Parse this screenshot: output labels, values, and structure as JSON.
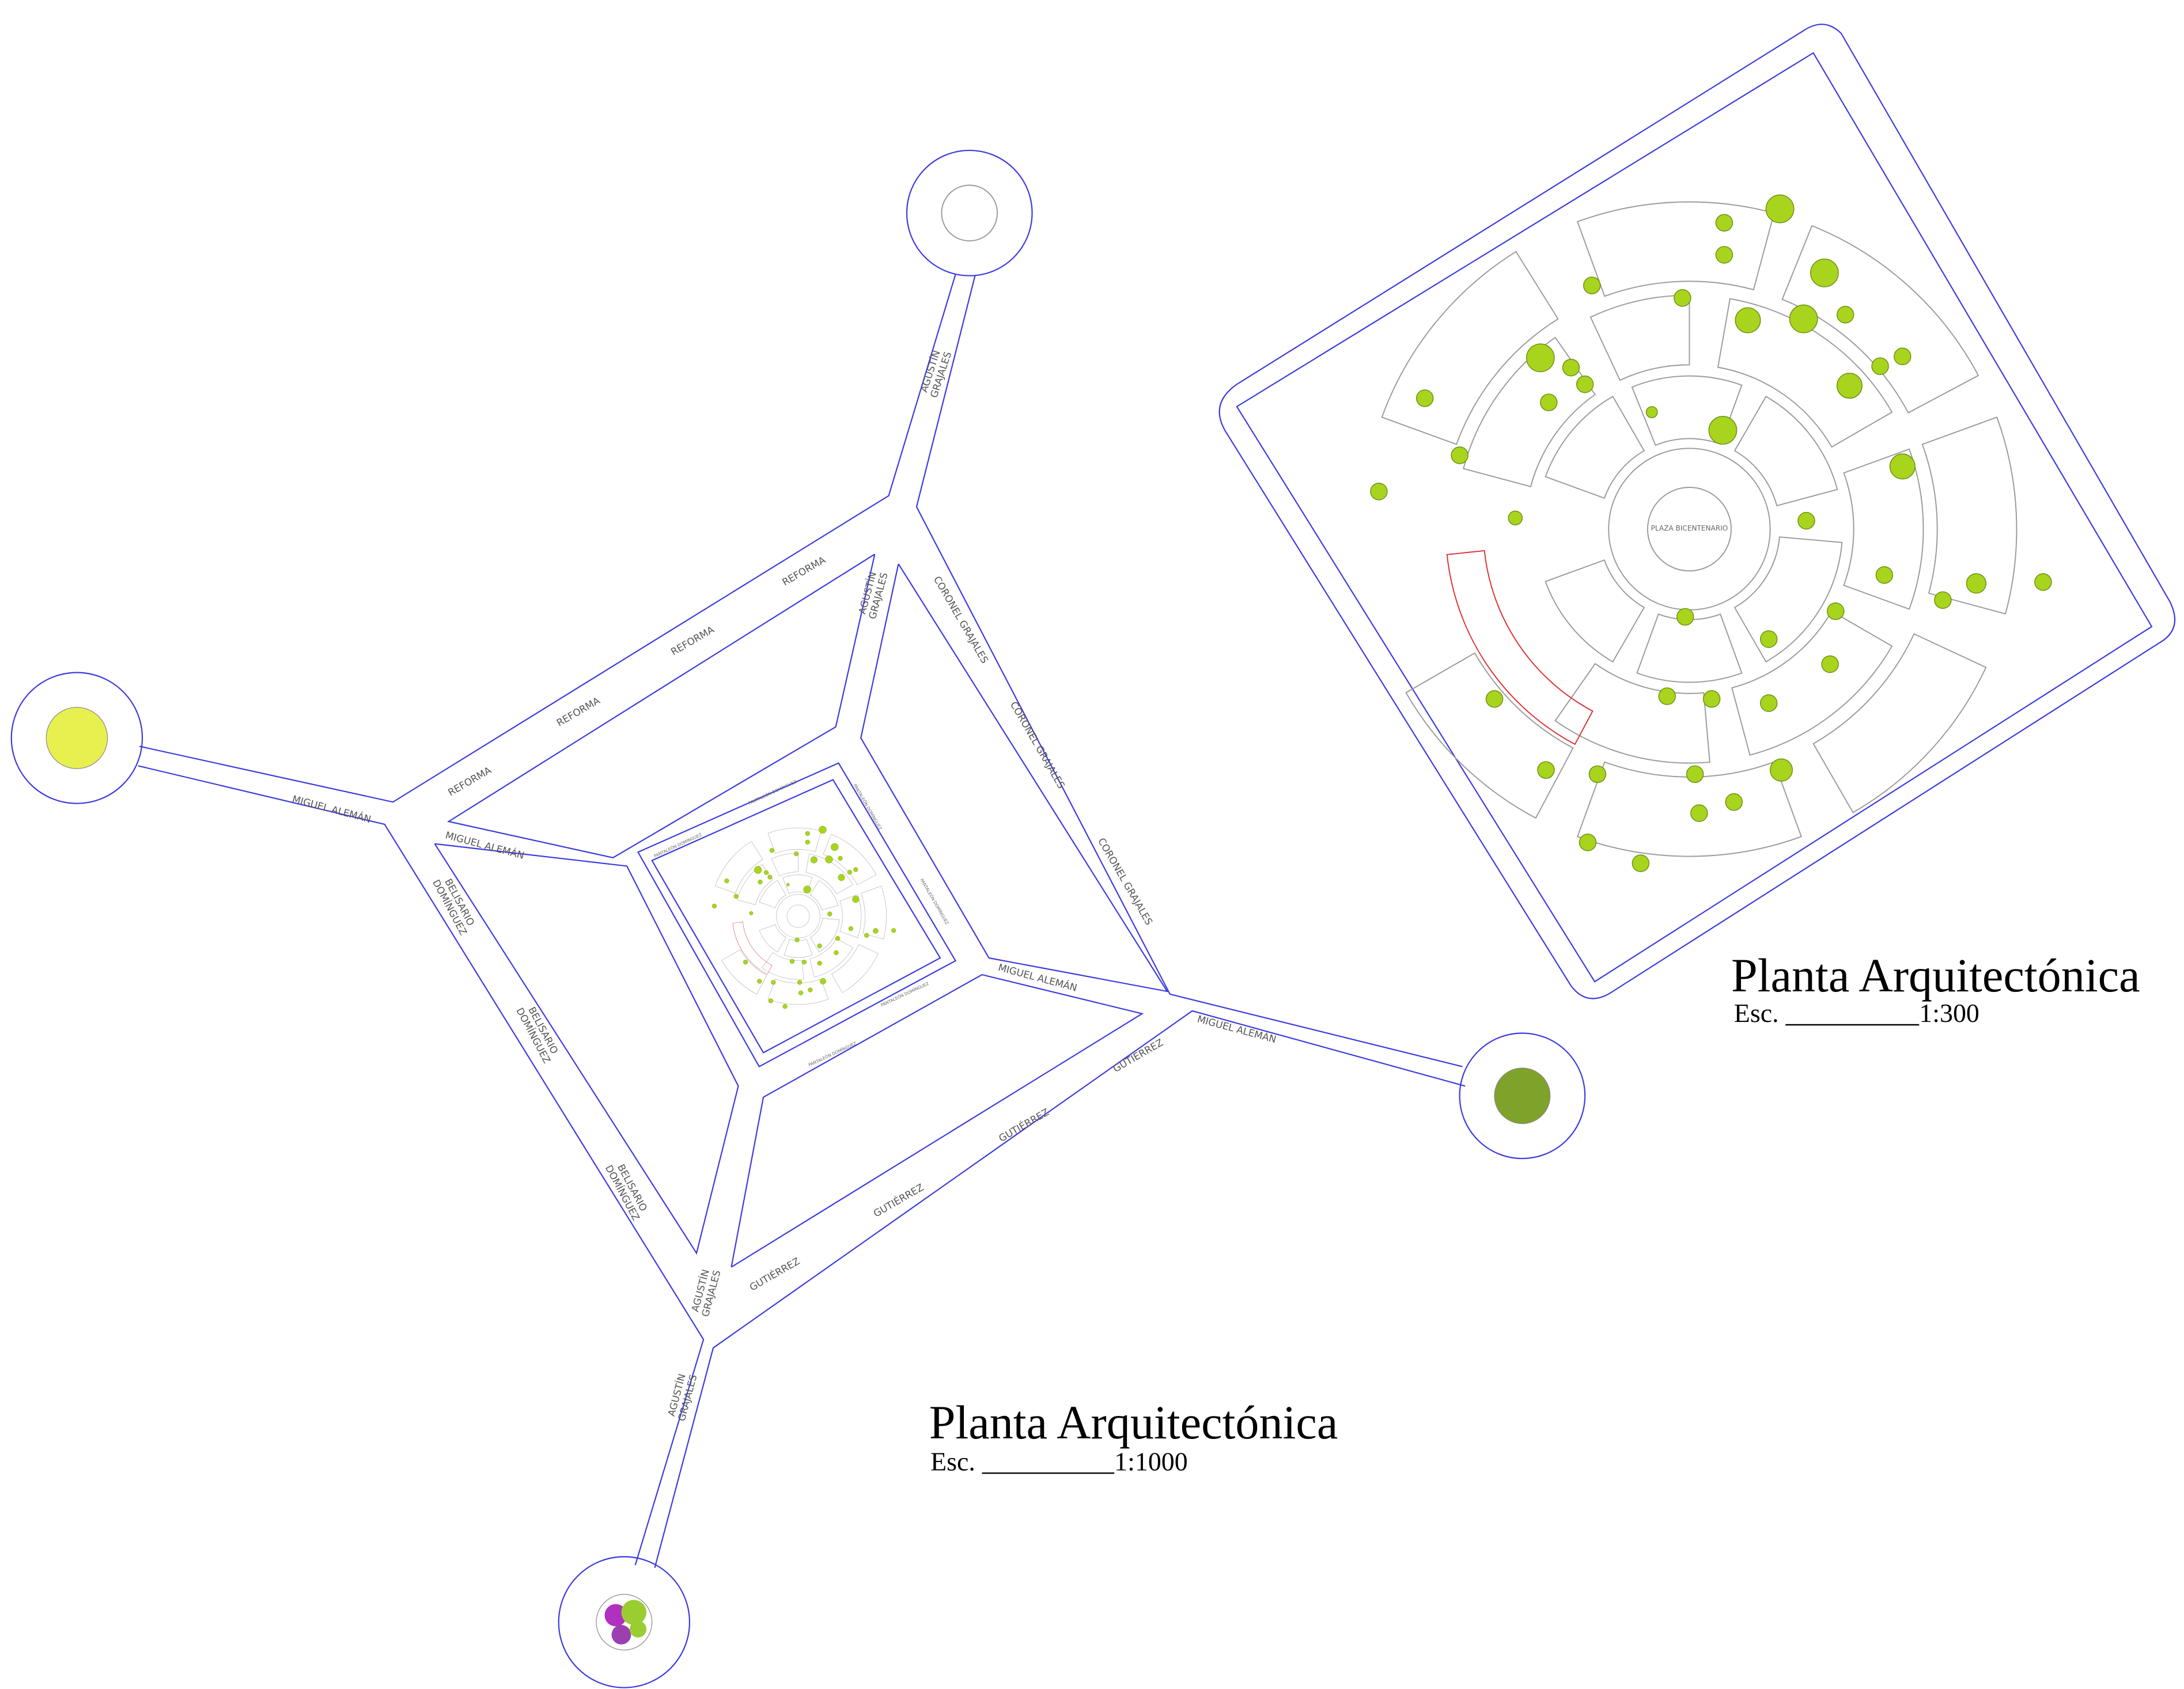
{
  "plans": [
    {
      "title": "Planta Arquitectónica",
      "scale_prefix": "Esc.",
      "scale": "1:1000"
    },
    {
      "title": "Planta Arquitectónica",
      "scale_prefix": "Esc.",
      "scale": "1:300"
    }
  ],
  "plaza_label": "PLAZA BICENTENARIO",
  "streets": [
    {
      "lines": [
        "AGUSTÍN",
        "GRAJALES"
      ]
    },
    {
      "lines": [
        "REFORMA"
      ]
    },
    {
      "lines": [
        "REFORMA"
      ]
    },
    {
      "lines": [
        "REFORMA"
      ]
    },
    {
      "lines": [
        "REFORMA"
      ]
    },
    {
      "lines": [
        "MIGUEL ALEMÁN"
      ]
    },
    {
      "lines": [
        "MIGUEL ALEMÁN"
      ]
    },
    {
      "lines": [
        "AGUSTÍN",
        "GRAJALES"
      ]
    },
    {
      "lines": [
        "CORONEL GRAJALES"
      ]
    },
    {
      "lines": [
        "CORONEL GRAJALES"
      ]
    },
    {
      "lines": [
        "CORONEL GRAJALES"
      ]
    },
    {
      "lines": [
        "BELISARIO",
        "DOMÍNGUEZ"
      ]
    },
    {
      "lines": [
        "BELISARIO",
        "DOMÍNGUEZ"
      ]
    },
    {
      "lines": [
        "BELISARIO",
        "DOMÍNGUEZ"
      ]
    },
    {
      "lines": [
        "MIGUEL ALEMÁN"
      ]
    },
    {
      "lines": [
        "MIGUEL ALEMÁN"
      ]
    },
    {
      "lines": [
        "GUTIÉRREZ"
      ]
    },
    {
      "lines": [
        "GUTIÉRREZ"
      ]
    },
    {
      "lines": [
        "GUTIÉRREZ"
      ]
    },
    {
      "lines": [
        "GUTIÉRREZ"
      ]
    },
    {
      "lines": [
        "AGUSTÍN",
        "GRAJALES"
      ]
    },
    {
      "lines": [
        "AGUSTÍN",
        "GRAJALES"
      ]
    }
  ],
  "inner_streets": [
    "PANTALEÓN DOMÍNGUEZ",
    "PANTALEÓN DOMÍNGUEZ",
    "PANTALEÓN DOMÍNGUEZ",
    "PANTALEÓN DOMÍNGUEZ",
    "PANTALEÓN DOMÍNGUEZ",
    "PANTALEÓN DOMÍNGUEZ"
  ]
}
